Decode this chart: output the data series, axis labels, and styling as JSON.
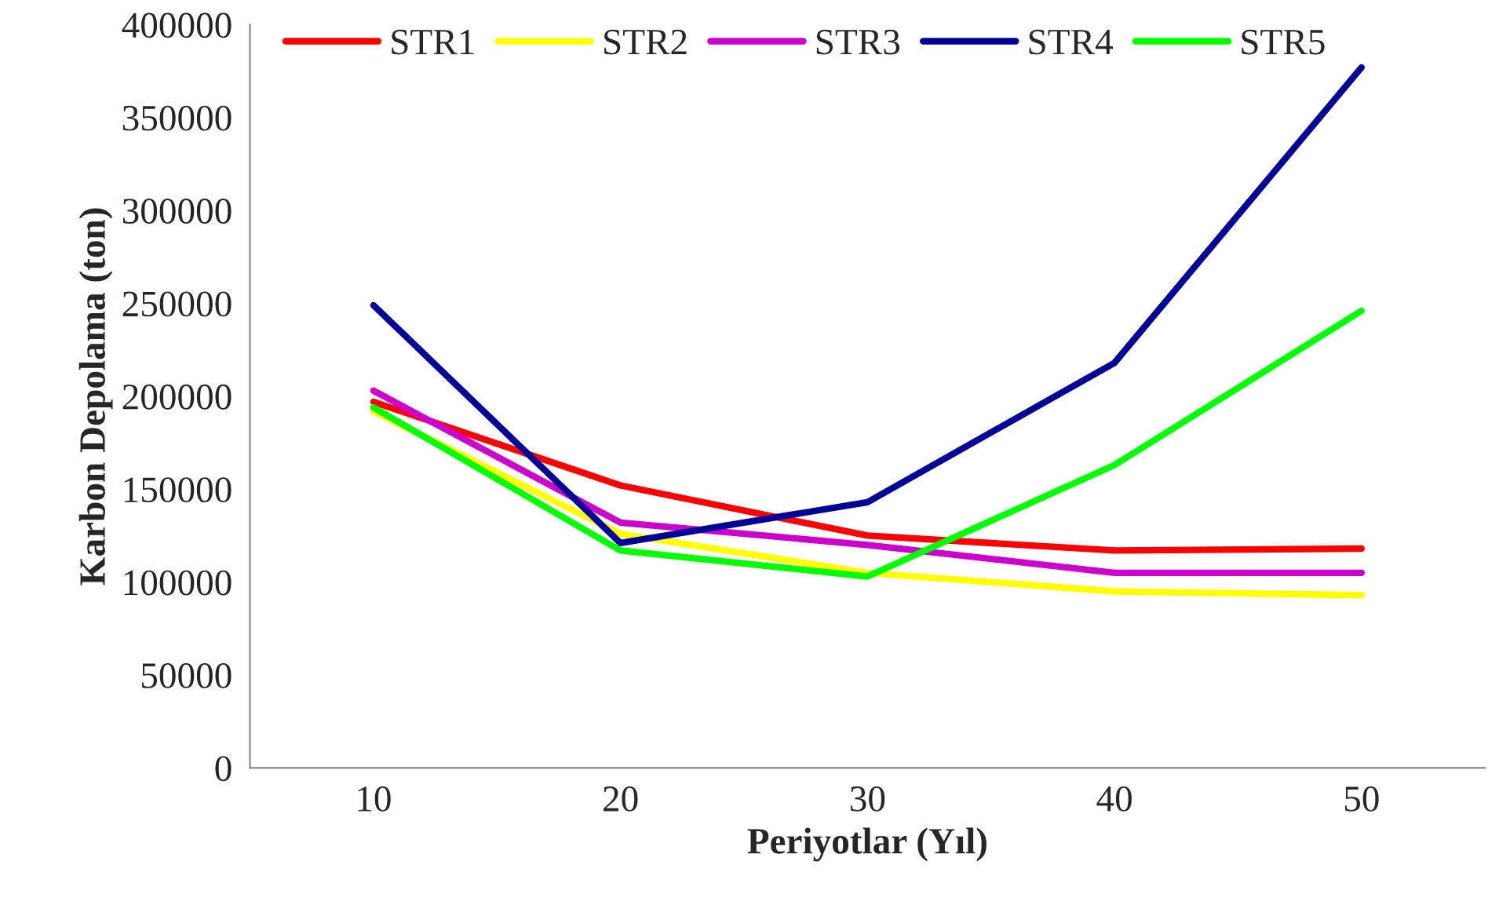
{
  "chart_data": {
    "type": "line",
    "xlabel": "Periyotlar (Yıl)",
    "ylabel": "Karbon Depolama (ton)",
    "categories": [
      "10",
      "20",
      "30",
      "40",
      "50"
    ],
    "series": [
      {
        "name": "STR1",
        "color": "#ff0000",
        "values": [
          197000,
          152000,
          125000,
          117000,
          118000
        ]
      },
      {
        "name": "STR2",
        "color": "#ffff00",
        "values": [
          192000,
          126000,
          105000,
          95000,
          93000
        ]
      },
      {
        "name": "STR3",
        "color": "#cc00cc",
        "values": [
          203000,
          132000,
          120000,
          105000,
          105000
        ]
      },
      {
        "name": "STR4",
        "color": "#000099",
        "values": [
          249000,
          121000,
          143000,
          218000,
          377000
        ]
      },
      {
        "name": "STR5",
        "color": "#00ff00",
        "values": [
          194000,
          117000,
          103000,
          163000,
          246000
        ]
      }
    ],
    "ylim": [
      0,
      400000
    ],
    "yticks": [
      0,
      50000,
      100000,
      150000,
      200000,
      250000,
      300000,
      350000,
      400000
    ],
    "grid": false,
    "legend": "top",
    "marker": "none",
    "line_style": "solid"
  }
}
